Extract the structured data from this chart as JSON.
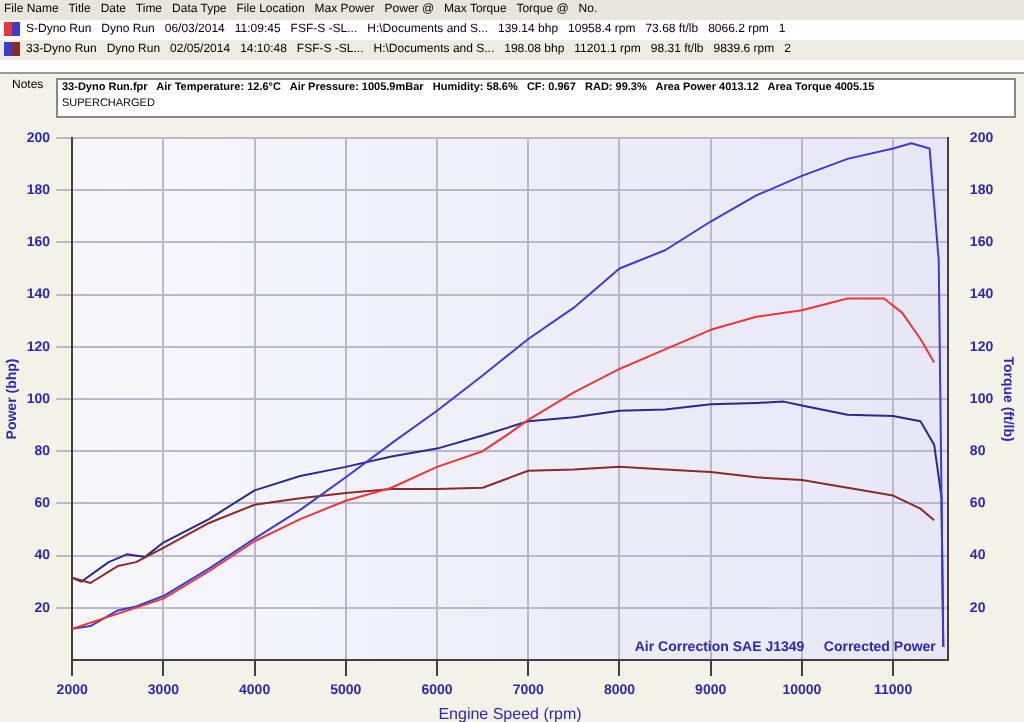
{
  "chart_data": {
    "type": "line",
    "xlabel": "Engine Speed (rpm)",
    "ylabel": "Power (bhp)",
    "y2label": "Torque (ft/lb)",
    "xlim": [
      2000,
      11600
    ],
    "xticks": [
      2000,
      3000,
      4000,
      5000,
      6000,
      7000,
      8000,
      9000,
      10000,
      11000
    ],
    "ylim": [
      0,
      200
    ],
    "yticks": [
      20,
      40,
      60,
      80,
      100,
      120,
      140,
      160,
      180,
      200
    ],
    "y2lim": [
      0,
      200
    ],
    "y2ticks": [
      20,
      40,
      60,
      80,
      100,
      120,
      140,
      160,
      180,
      200
    ],
    "grid": true,
    "legend": false,
    "marker": "none",
    "line_style": "solid",
    "series": [
      {
        "color": "#e8383c",
        "x": [
          2000,
          3000,
          3500,
          4000,
          4500,
          5000,
          5500,
          6000,
          6500,
          6800,
          7000,
          7500,
          8000,
          8500,
          9000,
          9500,
          10000,
          10500,
          10900,
          11100,
          11300,
          11450
        ],
        "values": [
          12,
          23.5,
          34,
          45.5,
          54,
          61,
          66,
          74,
          80,
          87,
          92,
          102.5,
          111.5,
          119,
          126.5,
          131.5,
          134,
          138.5,
          138.5,
          133,
          123,
          114
        ]
      },
      {
        "color": "#3c3cd0",
        "x": [
          2000,
          2200,
          2500,
          2700,
          3000,
          3500,
          4000,
          4500,
          5000,
          5500,
          6000,
          6500,
          7000,
          7500,
          8000,
          8500,
          9000,
          9500,
          10000,
          10500,
          11000,
          11200,
          11400,
          11500,
          11550
        ],
        "values": [
          12,
          13,
          19,
          20.5,
          24.5,
          35,
          46.5,
          57.5,
          70,
          83,
          95.5,
          109,
          123,
          135,
          150,
          157,
          168,
          178,
          185.5,
          192,
          196,
          198,
          196,
          153,
          5
        ]
      },
      {
        "color": "#8b2a2a",
        "x": [
          2000,
          2200,
          2500,
          2700,
          3000,
          3500,
          4000,
          4500,
          5000,
          5500,
          6000,
          6500,
          7000,
          7500,
          8000,
          8500,
          9000,
          9500,
          10000,
          10500,
          11000,
          11300,
          11450
        ],
        "values": [
          31.5,
          29.5,
          36,
          37.5,
          43,
          52.5,
          59.5,
          62,
          64,
          65.5,
          65.5,
          66,
          72.5,
          73,
          74,
          73,
          72,
          70,
          69,
          66,
          63,
          58,
          53.5
        ]
      },
      {
        "color": "#2a2a8a",
        "x": [
          2000,
          2100,
          2400,
          2600,
          2800,
          3000,
          3500,
          4000,
          4500,
          5000,
          5500,
          6000,
          6500,
          7000,
          7500,
          8000,
          8500,
          9000,
          9500,
          9800,
          10000,
          10500,
          11000,
          11300,
          11450,
          11530,
          11550
        ],
        "values": [
          31.5,
          30,
          37.5,
          40.5,
          39.5,
          45,
          54,
          65,
          70.5,
          74,
          78,
          81,
          86,
          91.5,
          93,
          95.5,
          96,
          98,
          98.5,
          99,
          97.5,
          94,
          93.5,
          91.5,
          82.5,
          62.5,
          5
        ]
      }
    ],
    "annotations": [
      "File Name   Title   Date   Time   Data Type   File Location   Max Power   Power @   Max Torque   Torque @   No.",
      "S-Dyno Run   Dyno Run   06/03/2014   11:09:45   FSF-S -SL...   H:\\Documents and S...   139.14 bhp   10958.4 rpm   73.68 ft/lb   8066.2 rpm   1",
      "33-Dyno Run   Dyno Run   02/05/2014   14:10:48   FSF-S -SL...   H:\\Documents and S...   198.08 bhp   11201.1 rpm   98.31 ft/lb   9839.6 rpm   2",
      "Notes",
      "33-Dyno Run.fpr   Air Temperature: 12.6°C   Air Pressure: 1005.9mBar   Humidity: 58.6%   CF: 0.967   RAD: 99.3%   Area Power 4013.12   Area Torque 4005.15",
      "SUPERCHARGED",
      "Air Correction SAE J1349",
      "Corrected Power"
    ]
  }
}
